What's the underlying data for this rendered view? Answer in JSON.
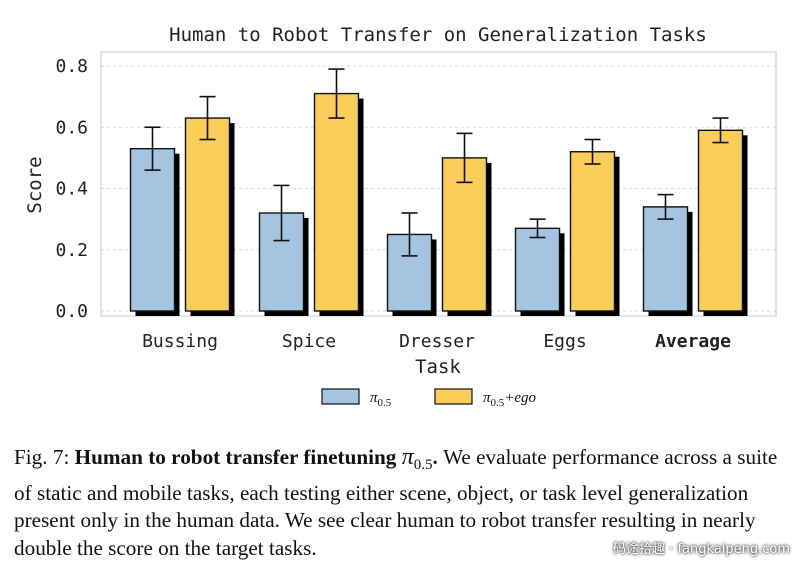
{
  "chart_data": {
    "type": "bar",
    "title": "Human to Robot Transfer on Generalization Tasks",
    "xlabel": "Task",
    "ylabel": "Score",
    "ylim": [
      0,
      0.85
    ],
    "yticks": [
      "0.0",
      "0.2",
      "0.4",
      "0.6",
      "0.8"
    ],
    "ytick_values": [
      0.0,
      0.2,
      0.4,
      0.6,
      0.8
    ],
    "grid": true,
    "categories": [
      "Bussing",
      "Spice",
      "Dresser",
      "Eggs",
      "Average"
    ],
    "bold_category": "Average",
    "series": [
      {
        "name": "π0.5",
        "legend_main": "π",
        "legend_sub": "0.5",
        "legend_suffix": "",
        "color": "#a5c4e0",
        "values": [
          0.53,
          0.32,
          0.25,
          0.27,
          0.34
        ],
        "errors": [
          0.07,
          0.09,
          0.07,
          0.03,
          0.04
        ]
      },
      {
        "name": "π0.5+ego",
        "legend_main": "π",
        "legend_sub": "0.5",
        "legend_suffix": "+ego",
        "color": "#f8cd5a",
        "values": [
          0.63,
          0.71,
          0.5,
          0.52,
          0.59
        ],
        "errors": [
          0.07,
          0.08,
          0.08,
          0.04,
          0.04
        ]
      }
    ],
    "legend_position": "bottom-center"
  },
  "caption": {
    "label": "Fig. 7:",
    "title": "Human to robot transfer finetuning",
    "symbol": "π",
    "symbol_sub": "0.5",
    "title_end": ".",
    "body": "We evaluate performance across a suite of static and mobile tasks, each testing either scene, object, or task level generalization present only in the human data. We see clear human to robot transfer resulting in nearly double the score on the target tasks."
  },
  "watermark": "码途拾趣 · fangkaipeng.com"
}
